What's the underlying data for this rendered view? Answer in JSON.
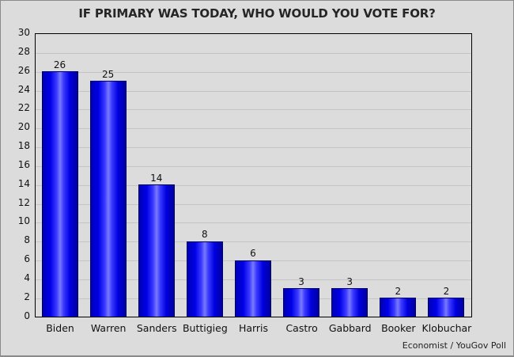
{
  "chart_data": {
    "type": "bar",
    "title": "IF PRIMARY WAS TODAY, WHO WOULD YOU VOTE FOR?",
    "categories": [
      "Biden",
      "Warren",
      "Sanders",
      "Buttigieg",
      "Harris",
      "Castro",
      "Gabbard",
      "Booker",
      "Klobuchar"
    ],
    "values": [
      26,
      25,
      14,
      8,
      6,
      3,
      3,
      2,
      2
    ],
    "value_labels": [
      "26",
      "25",
      "14",
      "8",
      "6",
      "3",
      "3",
      "2",
      "2"
    ],
    "xlabel": "",
    "ylabel": "",
    "ylim": [
      0,
      30
    ],
    "yticks": [
      "0",
      "2",
      "4",
      "6",
      "8",
      "10",
      "12",
      "14",
      "16",
      "18",
      "20",
      "22",
      "24",
      "26",
      "28",
      "30"
    ],
    "grid": true,
    "legend": null,
    "bar_color": "#0000e0",
    "annotation": "Economist / YouGov Poll"
  }
}
